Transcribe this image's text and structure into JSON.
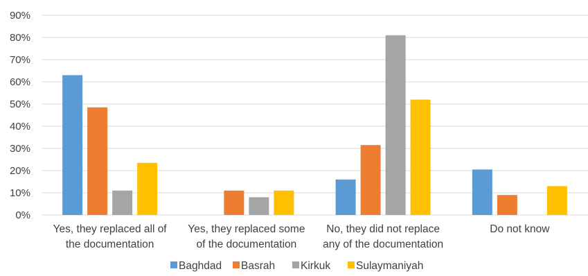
{
  "chart_data": {
    "type": "bar",
    "title": "",
    "xlabel": "",
    "ylabel": "",
    "ylim": [
      0,
      90
    ],
    "y_ticks": [
      "0%",
      "10%",
      "20%",
      "30%",
      "40%",
      "50%",
      "60%",
      "70%",
      "80%",
      "90%"
    ],
    "grid": true,
    "legend_position": "bottom",
    "categories": [
      [
        "Yes, they replaced all of",
        "the documentation"
      ],
      [
        "Yes, they replaced some",
        "of the documentation"
      ],
      [
        "No, they did not replace",
        "any of the documentation"
      ],
      [
        "Do not know"
      ]
    ],
    "series": [
      {
        "name": "Baghdad",
        "color": "#5B9BD5",
        "values": [
          63,
          0,
          16,
          20.5
        ]
      },
      {
        "name": "Basrah",
        "color": "#ED7D31",
        "values": [
          48.5,
          11,
          31.5,
          9
        ]
      },
      {
        "name": "Kirkuk",
        "color": "#A5A5A5",
        "values": [
          11,
          8,
          81,
          0
        ]
      },
      {
        "name": "Sulaymaniyah",
        "color": "#FFC000",
        "values": [
          23.5,
          11,
          52,
          13
        ]
      }
    ]
  }
}
